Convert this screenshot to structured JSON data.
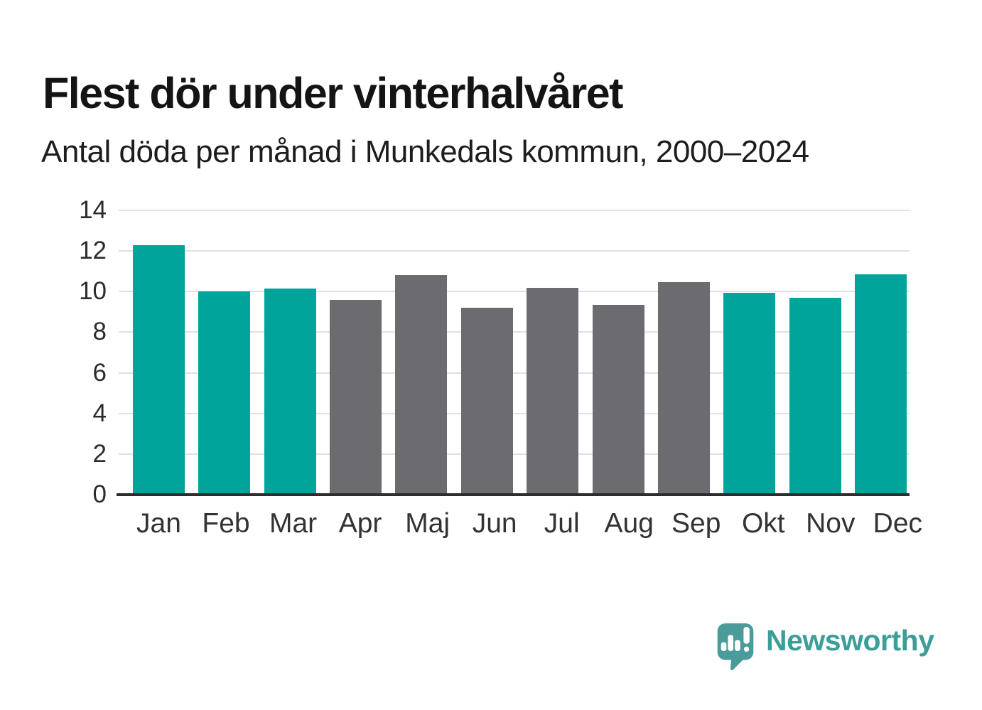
{
  "header": {
    "title": "Flest dör under vinterhalvåret",
    "subtitle": "Antal döda per månad i Munkedals kommun, 2000–2024"
  },
  "chart_data": {
    "type": "bar",
    "title": "Flest dör under vinterhalvåret",
    "subtitle": "Antal döda per månad i Munkedals kommun, 2000–2024",
    "categories": [
      "Jan",
      "Feb",
      "Mar",
      "Apr",
      "Maj",
      "Jun",
      "Jul",
      "Aug",
      "Sep",
      "Okt",
      "Nov",
      "Dec"
    ],
    "values": [
      12.3,
      10.0,
      10.15,
      9.6,
      10.8,
      9.2,
      10.2,
      9.35,
      10.45,
      9.95,
      9.7,
      10.85
    ],
    "bar_colors": [
      "#00a49a",
      "#00a49a",
      "#00a49a",
      "#6c6c70",
      "#6c6c70",
      "#6c6c70",
      "#6c6c70",
      "#6c6c70",
      "#6c6c70",
      "#00a49a",
      "#00a49a",
      "#00a49a"
    ],
    "highlight_color": "#00a49a",
    "base_color": "#6c6c70",
    "ylim": [
      0,
      14
    ],
    "yticks": [
      0,
      2,
      4,
      6,
      8,
      10,
      12,
      14
    ],
    "xlabel": "",
    "ylabel": "",
    "grid": "horizontal",
    "legend": "none"
  },
  "branding": {
    "logo_text": "Newsworthy",
    "logo_color": "#3b9e99",
    "logo_icon_color": "#4a9c9a",
    "logo_icon": "newsworthy-speech-bubble-chart-icon"
  }
}
